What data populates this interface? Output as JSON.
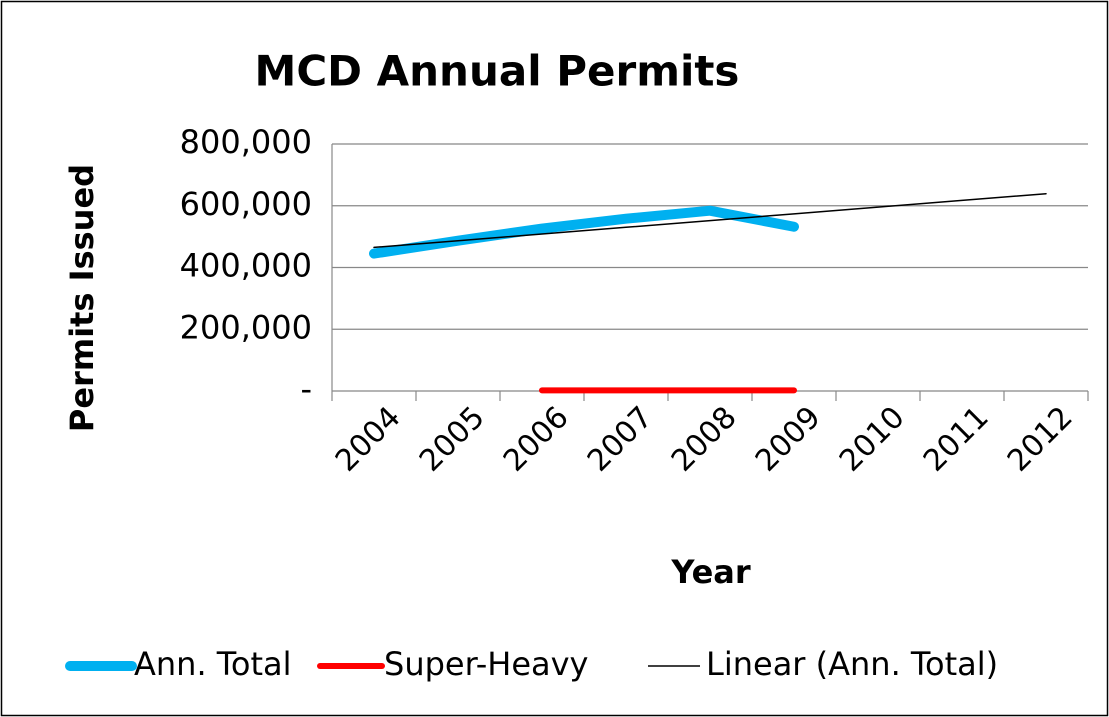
{
  "chart_data": {
    "type": "line",
    "title": "MCD Annual Permits",
    "x_label": "Year",
    "y_label": "Permits Issued",
    "categories": [
      "2004",
      "2005",
      "2006",
      "2007",
      "2008",
      "2009",
      "2010",
      "2011",
      "2012"
    ],
    "series": [
      {
        "name": "Ann. Total",
        "color": "#00b0f0",
        "values": [
          445000,
          487000,
          526000,
          558000,
          584000,
          532000,
          null,
          null,
          null
        ]
      },
      {
        "name": "Super-Heavy",
        "color": "#ff0000",
        "values": [
          null,
          null,
          2000,
          2000,
          2000,
          2000,
          null,
          null,
          null
        ]
      },
      {
        "name": "Linear (Ann. Total)",
        "color": "#000000",
        "values": [
          465000,
          486750,
          508500,
          530250,
          552000,
          573750,
          595500,
          617250,
          639000
        ]
      }
    ],
    "ylim": [
      0,
      800000
    ],
    "yticks": [
      {
        "value": 0,
        "label": "-"
      },
      {
        "value": 200000,
        "label": "200,000"
      },
      {
        "value": 400000,
        "label": "400,000"
      },
      {
        "value": 600000,
        "label": "600,000"
      },
      {
        "value": 800000,
        "label": "800,000"
      }
    ],
    "grid": true,
    "legend": "bottom"
  }
}
